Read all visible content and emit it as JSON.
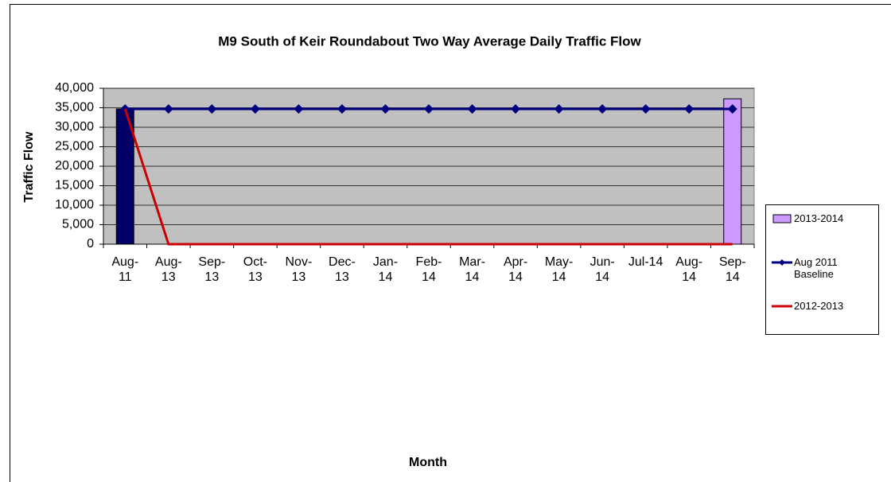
{
  "chart_data": {
    "type": "bar",
    "title": "M9 South of Keir Roundabout Two Way Average Daily Traffic Flow",
    "x_label": "Month",
    "y_label": "Traffic Flow",
    "categories": [
      "Aug-11",
      "Aug-13",
      "Sep-13",
      "Oct-13",
      "Nov-13",
      "Dec-13",
      "Jan-14",
      "Feb-14",
      "Mar-14",
      "Apr-14",
      "May-14",
      "Jun-14",
      "Jul-14",
      "Aug-14",
      "Sep-14"
    ],
    "series": [
      {
        "name": "2013-2014",
        "type": "bar",
        "color": "#cc99ff",
        "point_colors": [
          "#000066",
          null,
          null,
          null,
          null,
          null,
          null,
          null,
          null,
          null,
          null,
          null,
          null,
          null,
          "#cc99ff"
        ],
        "values": [
          34700,
          null,
          null,
          null,
          null,
          null,
          null,
          null,
          null,
          null,
          null,
          null,
          null,
          null,
          37300
        ]
      },
      {
        "name": "Aug 2011 Baseline",
        "type": "line",
        "marker": "diamond",
        "color": "#000080",
        "values": [
          34700,
          34700,
          34700,
          34700,
          34700,
          34700,
          34700,
          34700,
          34700,
          34700,
          34700,
          34700,
          34700,
          34700,
          34700
        ]
      },
      {
        "name": "2012-2013",
        "type": "line",
        "color": "#cc0000",
        "values": [
          34700,
          0,
          0,
          0,
          0,
          0,
          0,
          0,
          0,
          0,
          0,
          0,
          0,
          0,
          0
        ]
      }
    ],
    "ylim": [
      0,
      40000
    ],
    "yticks": [
      0,
      {
        "value": 5000,
        "label": "5,000"
      },
      {
        "value": 10000,
        "label": "10,000"
      },
      {
        "value": 15000,
        "label": "15,000"
      },
      {
        "value": 20000,
        "label": "20,000"
      },
      {
        "value": 25000,
        "label": "25,000"
      },
      {
        "value": 30000,
        "label": "30,000"
      },
      {
        "value": 35000,
        "label": "35,000"
      },
      {
        "value": 40000,
        "label": "40,000"
      }
    ],
    "grid": true,
    "plot_background": "#c0c0c0",
    "legend": "right"
  }
}
